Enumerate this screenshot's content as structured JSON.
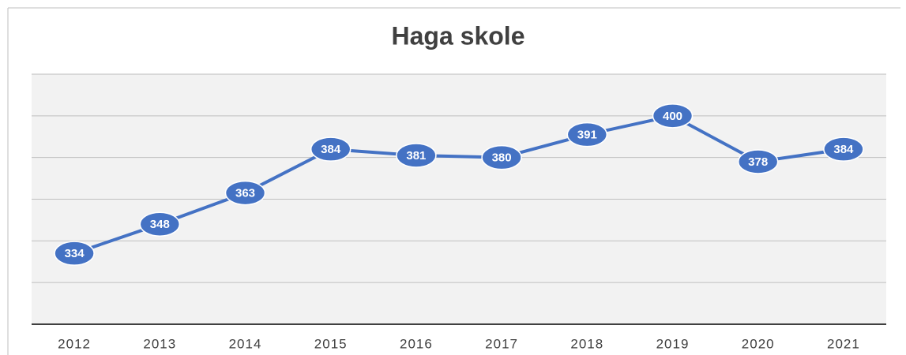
{
  "chart_data": {
    "type": "line",
    "title": "Haga skole",
    "categories": [
      "2012",
      "2013",
      "2014",
      "2015",
      "2016",
      "2017",
      "2018",
      "2019",
      "2020",
      "2021"
    ],
    "values": [
      334,
      348,
      363,
      384,
      381,
      380,
      391,
      400,
      378,
      384
    ],
    "color": "#4472c4",
    "ylim": [
      300,
      420
    ],
    "yticks": [
      300,
      320,
      340,
      360,
      380,
      400,
      420
    ],
    "grid": true
  }
}
